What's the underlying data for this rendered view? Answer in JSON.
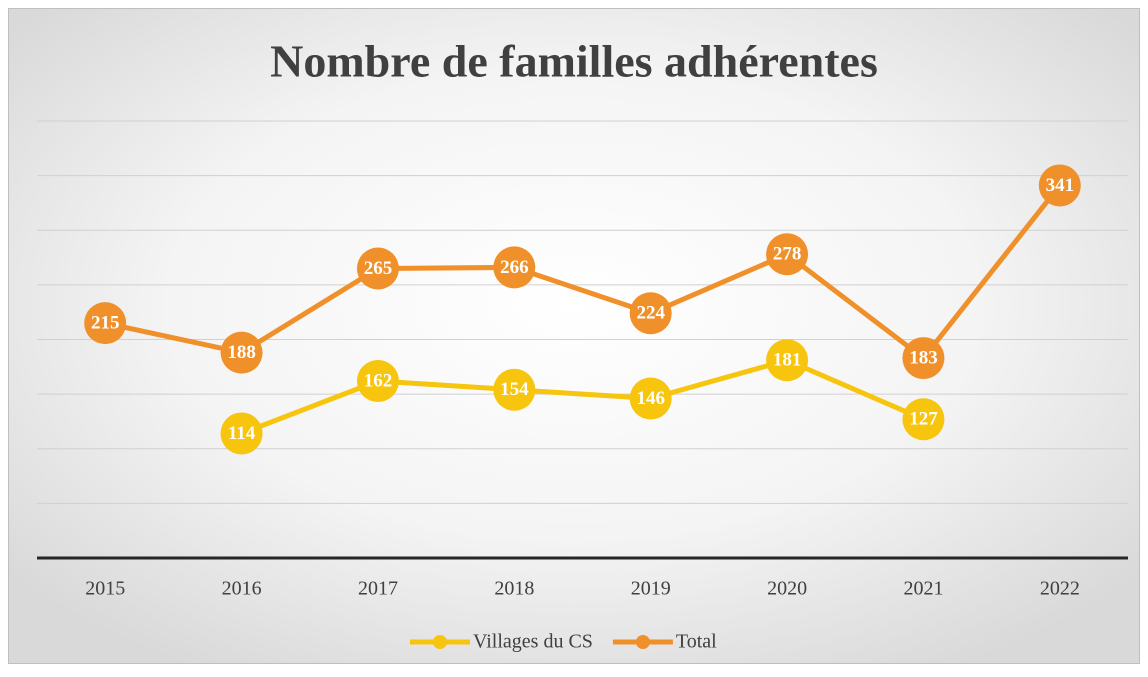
{
  "chart_data": {
    "type": "line",
    "title": "Nombre de familles adhérentes",
    "categories": [
      "2015",
      "2016",
      "2017",
      "2018",
      "2019",
      "2020",
      "2021",
      "2022"
    ],
    "series": [
      {
        "name": "Villages du CS",
        "color": "#f7c40e",
        "values": [
          null,
          114,
          162,
          154,
          146,
          181,
          127,
          null
        ]
      },
      {
        "name": "Total",
        "color": "#f0902a",
        "values": [
          215,
          188,
          265,
          266,
          224,
          278,
          183,
          341
        ]
      }
    ],
    "ylim": [
      0,
      400
    ],
    "yticks": [
      0,
      50,
      100,
      150,
      200,
      250,
      300,
      350,
      400
    ],
    "show_ytick_labels": false,
    "grid": true,
    "legend": "bottom",
    "data_labels": true
  }
}
